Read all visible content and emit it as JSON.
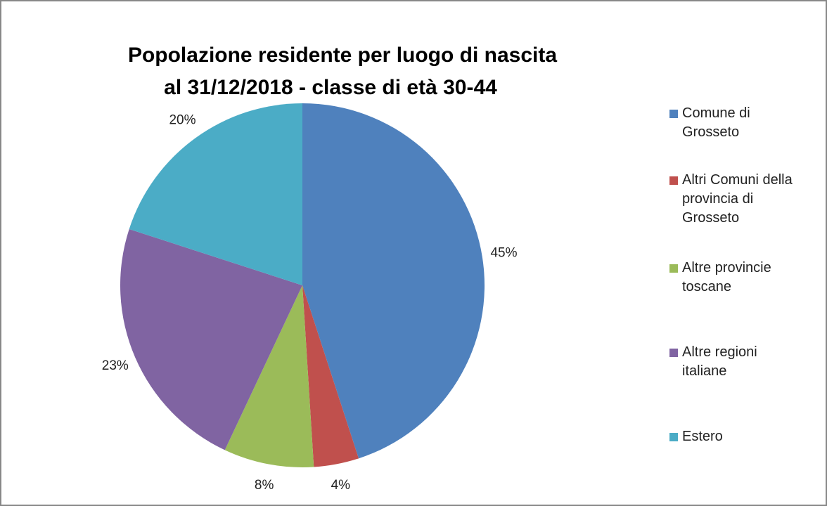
{
  "chart_data": {
    "type": "pie",
    "title": [
      "Popolazione residente per luogo di nascita",
      "al 31/12/2018 - classe di età 30-44"
    ],
    "categories": [
      "Comune di Grosseto",
      "Altri Comuni della provincia di Grosseto",
      "Altre provincie toscane",
      "Altre regioni italiane",
      "Estero"
    ],
    "values": [
      45,
      4,
      8,
      23,
      20
    ],
    "value_labels": [
      "45%",
      "4%",
      "8%",
      "23%",
      "20%"
    ],
    "colors": [
      "#4f81bd",
      "#c0504d",
      "#9bbb59",
      "#8064a2",
      "#4bacc6"
    ],
    "legend": "right"
  }
}
